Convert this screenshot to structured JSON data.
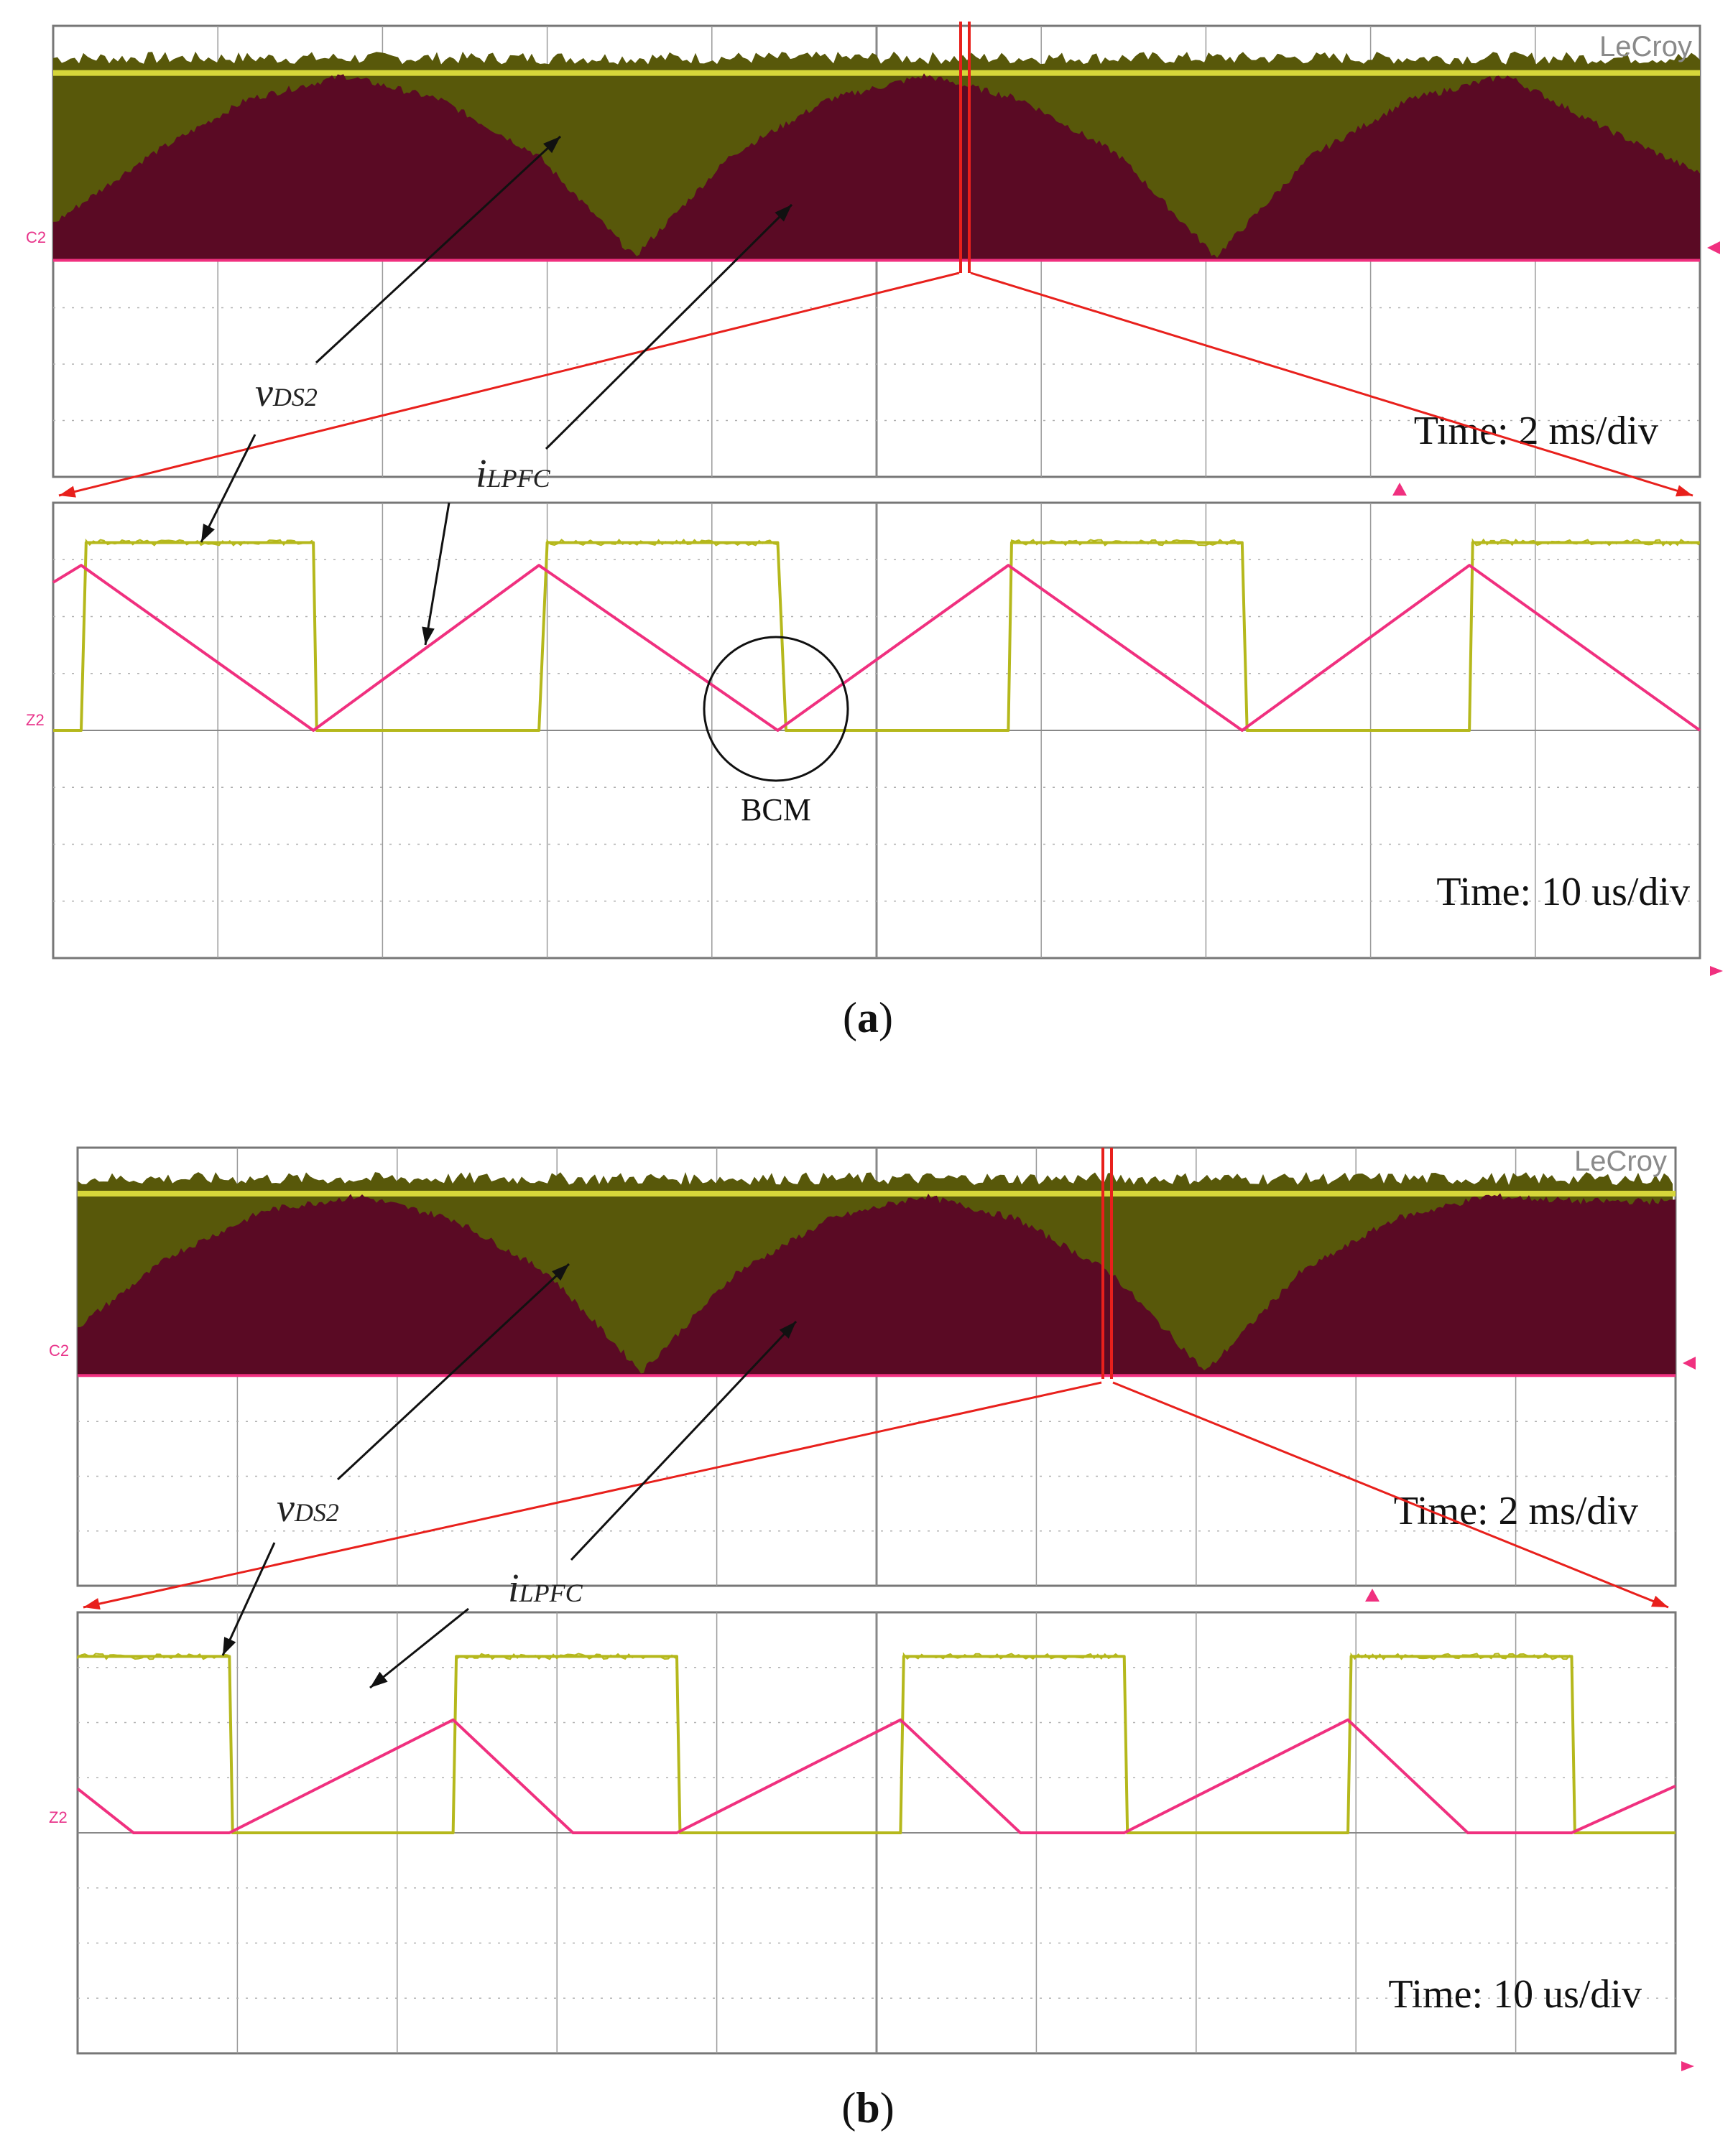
{
  "figure": {
    "panels": [
      {
        "id": "a",
        "caption_letter": "a",
        "brand": "LeCroy",
        "channel_top": "C2",
        "channel_bottom": "Z2",
        "time_top": "Time: 2 ms/div",
        "time_bottom": "Time: 10 us/div",
        "label_v": "v",
        "label_v_sub": "DS2",
        "label_i": "i",
        "label_i_sub": "LPFC",
        "marker": "BCM"
      },
      {
        "id": "b",
        "caption_letter": "b",
        "brand": "LeCroy",
        "channel_top": "C2",
        "channel_bottom": "Z2",
        "time_top": "Time: 2 ms/div",
        "time_bottom": "Time: 10 us/div",
        "label_v": "v",
        "label_v_sub": "DS2",
        "label_i": "i",
        "label_i_sub": "LPFC",
        "marker": ""
      }
    ]
  },
  "colors": {
    "voltage": "#b5b81c",
    "current": "#f0307f",
    "envelope_dark": "#5a0a24",
    "envelope_olive": "#58580a",
    "zoom_lines": "#e8201c",
    "grid": "#9a9a9a"
  },
  "chart_data": [
    {
      "type": "line",
      "panel": "a",
      "view": "2 ms/div overview",
      "divisions": {
        "x": 10,
        "y": 8
      },
      "series": [
        {
          "name": "v_DS2",
          "description_of_shape": "switching envelope",
          "values": []
        },
        {
          "name": "i_LPFC",
          "envelope_relative": [
            0.18,
            0.55,
            0.85,
            0.98,
            0.85,
            0.55,
            0.0,
            0.55,
            0.85,
            0.98,
            0.85,
            0.55,
            0.0,
            0.55,
            0.85,
            0.98,
            0.7,
            0.45
          ]
        }
      ]
    },
    {
      "type": "line",
      "panel": "a",
      "view": "10 us/div zoom",
      "divisions": {
        "x": 10,
        "y": 8
      },
      "series": [
        {
          "name": "v_DS2",
          "x_div": [
            0,
            0.17,
            0.2,
            1.58,
            1.6,
            2.95,
            3.0,
            4.4,
            4.45,
            5.8,
            5.82,
            7.22,
            7.25,
            8.6,
            8.62,
            10.0
          ],
          "y_div": [
            0.0,
            0.0,
            3.3,
            3.3,
            0.0,
            0.0,
            3.3,
            3.3,
            0.0,
            0.0,
            3.3,
            3.3,
            0.0,
            0.0,
            3.3,
            3.3
          ]
        },
        {
          "name": "i_LPFC",
          "x_div": [
            0,
            0.17,
            1.58,
            2.95,
            4.4,
            5.8,
            7.22,
            8.6,
            10.0
          ],
          "y_div": [
            2.6,
            2.9,
            0.0,
            2.9,
            0.0,
            2.9,
            0.0,
            2.9,
            0.0
          ]
        }
      ]
    },
    {
      "type": "line",
      "panel": "b",
      "view": "2 ms/div overview",
      "divisions": {
        "x": 10,
        "y": 8
      },
      "series": [
        {
          "name": "v_DS2",
          "description_of_shape": "switching envelope",
          "values": []
        },
        {
          "name": "i_LPFC",
          "envelope_relative": [
            0.25,
            0.65,
            0.9,
            0.98,
            0.85,
            0.55,
            0.0,
            0.55,
            0.85,
            0.98,
            0.85,
            0.55,
            0.0,
            0.55,
            0.85,
            0.98,
            0.95,
            0.95
          ]
        }
      ]
    },
    {
      "type": "line",
      "panel": "b",
      "view": "10 us/div zoom",
      "divisions": {
        "x": 10,
        "y": 8
      },
      "series": [
        {
          "name": "v_DS2",
          "x_div": [
            0,
            0.95,
            0.97,
            2.35,
            2.37,
            3.75,
            3.77,
            5.15,
            5.17,
            6.55,
            6.57,
            7.95,
            7.97,
            9.35,
            9.37,
            10.0
          ],
          "y_div": [
            3.2,
            3.2,
            0.0,
            0.0,
            3.2,
            3.2,
            0.0,
            0.0,
            3.2,
            3.2,
            0.0,
            0.0,
            3.2,
            3.2,
            0.0,
            0.0
          ]
        },
        {
          "name": "i_LPFC",
          "x_div": [
            0,
            0.35,
            0.95,
            2.35,
            3.1,
            3.75,
            5.15,
            5.9,
            6.55,
            7.95,
            8.7,
            9.35,
            10.0
          ],
          "y_div": [
            0.8,
            0.0,
            0.0,
            2.05,
            0.0,
            0.0,
            2.05,
            0.0,
            0.0,
            2.05,
            0.0,
            0.0,
            0.85
          ]
        }
      ]
    }
  ]
}
